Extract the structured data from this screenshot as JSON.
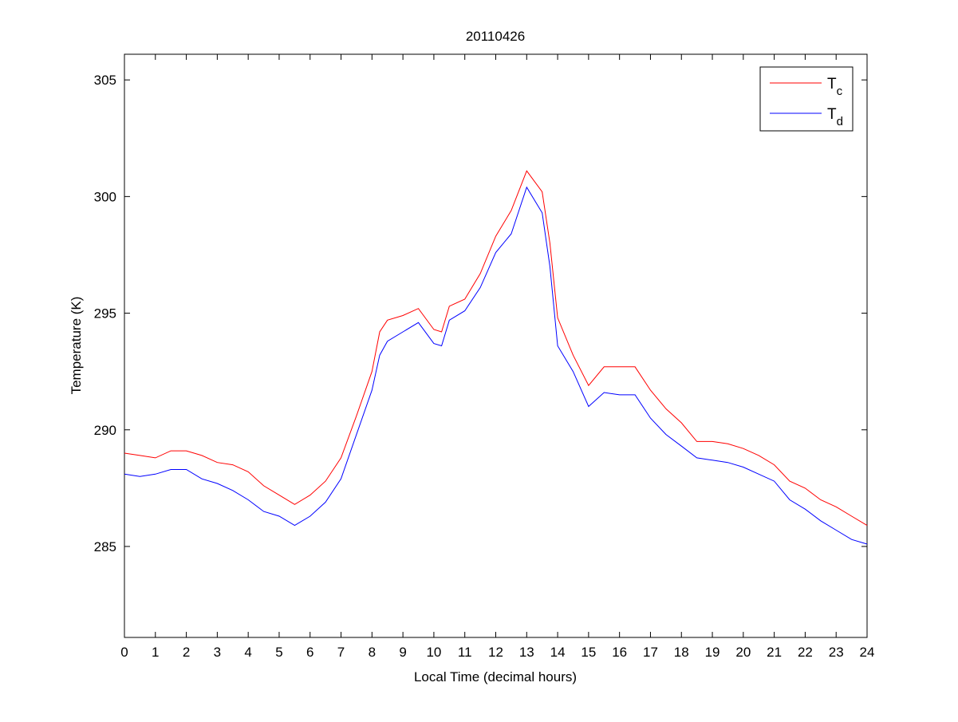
{
  "chart_data": {
    "type": "line",
    "title": "20110426",
    "xlabel": "Local Time (decimal hours)",
    "ylabel": "Temperature (K)",
    "xlim": [
      0,
      24
    ],
    "ylim": [
      281.1,
      306.1
    ],
    "xticks": [
      0,
      1,
      2,
      3,
      4,
      5,
      6,
      7,
      8,
      9,
      10,
      11,
      12,
      13,
      14,
      15,
      16,
      17,
      18,
      19,
      20,
      21,
      22,
      23,
      24
    ],
    "yticks": [
      285,
      290,
      295,
      300,
      305
    ],
    "grid": false,
    "legend_position": "top-right",
    "x": [
      0,
      0.5,
      1,
      1.5,
      2,
      2.5,
      3,
      3.5,
      4,
      4.5,
      5,
      5.5,
      6,
      6.5,
      7,
      7.5,
      8,
      8.25,
      8.5,
      9,
      9.5,
      10,
      10.25,
      10.5,
      11,
      11.5,
      12,
      12.5,
      13,
      13.5,
      13.75,
      14,
      14.5,
      15,
      15.5,
      16,
      16.5,
      17,
      17.5,
      18,
      18.5,
      19,
      19.5,
      20,
      20.5,
      21,
      21.5,
      22,
      22.5,
      23,
      23.5,
      24
    ],
    "series": [
      {
        "name": "T",
        "subscript": "c",
        "color": "#ff0000",
        "values": [
          289.0,
          288.9,
          288.8,
          289.1,
          289.1,
          288.9,
          288.6,
          288.5,
          288.2,
          287.6,
          287.2,
          286.8,
          287.2,
          287.8,
          288.8,
          290.6,
          292.5,
          294.2,
          294.7,
          294.9,
          295.2,
          294.3,
          294.2,
          295.3,
          295.6,
          296.7,
          298.3,
          299.4,
          301.1,
          300.2,
          298.0,
          294.8,
          293.2,
          291.9,
          292.7,
          292.7,
          292.7,
          291.7,
          290.9,
          290.3,
          289.5,
          289.5,
          289.4,
          289.2,
          288.9,
          288.5,
          287.8,
          287.5,
          287.0,
          286.7,
          286.3,
          285.9
        ]
      },
      {
        "name": "T",
        "subscript": "d",
        "color": "#0000ff",
        "values": [
          288.1,
          288.0,
          288.1,
          288.3,
          288.3,
          287.9,
          287.7,
          287.4,
          287.0,
          286.5,
          286.3,
          285.9,
          286.3,
          286.9,
          287.9,
          289.8,
          291.7,
          293.2,
          293.8,
          294.2,
          294.6,
          293.7,
          293.6,
          294.7,
          295.1,
          296.1,
          297.6,
          298.4,
          300.4,
          299.3,
          297.0,
          293.6,
          292.5,
          291.0,
          291.6,
          291.5,
          291.5,
          290.5,
          289.8,
          289.3,
          288.8,
          288.7,
          288.6,
          288.4,
          288.1,
          287.8,
          287.0,
          286.6,
          286.1,
          285.7,
          285.3,
          285.1
        ]
      }
    ]
  }
}
